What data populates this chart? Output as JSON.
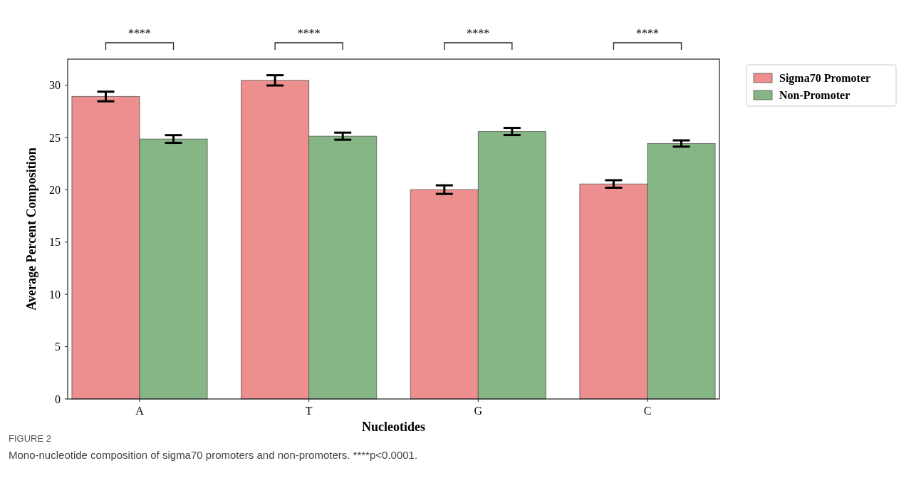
{
  "chart_data": {
    "type": "bar",
    "xlabel": "Nucleotides",
    "ylabel": "Average Percent Composition",
    "categories": [
      "A",
      "T",
      "G",
      "C"
    ],
    "series": [
      {
        "name": "Sigma70 Promoter",
        "color": "#ec8f8e",
        "values": [
          28.93,
          30.47,
          20.02,
          20.56
        ],
        "errors": [
          0.46,
          0.49,
          0.41,
          0.36
        ]
      },
      {
        "name": "Non-Promoter",
        "color": "#86b686",
        "values": [
          24.86,
          25.13,
          25.58,
          24.43
        ],
        "errors": [
          0.37,
          0.34,
          0.34,
          0.3
        ]
      }
    ],
    "ylim": [
      0,
      32.5
    ],
    "yticks": [
      0,
      5,
      10,
      15,
      20,
      25,
      30
    ],
    "grid": false,
    "legend": "top right",
    "annotations": [
      "****",
      "****",
      "****",
      "****",
      "FIGURE 2",
      "Mono-nucleotide composition of sigma70 promoters and non-promoters. ****p<0.0001."
    ]
  }
}
